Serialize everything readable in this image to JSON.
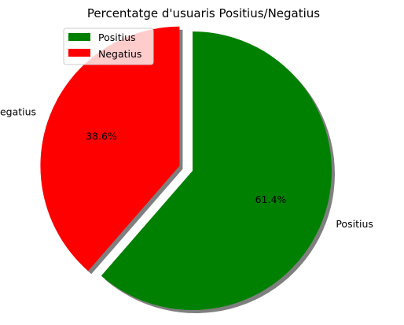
{
  "chart_data": {
    "type": "pie",
    "title": "Percentatge d'usuaris Positius/Negatius",
    "slices": [
      {
        "label": "Positius",
        "value": 61.4,
        "percent_label": "61.4%",
        "color": "#008000",
        "explode": 0.0
      },
      {
        "label": "Negatius",
        "value": 38.6,
        "percent_label": "38.6%",
        "color": "#ff0000",
        "explode": 0.1
      }
    ],
    "start_angle_deg": 90,
    "direction": "clockwise",
    "shadow": true,
    "legend": {
      "placement": "upper-left",
      "entries": [
        "Positius",
        "Negatius"
      ]
    }
  }
}
